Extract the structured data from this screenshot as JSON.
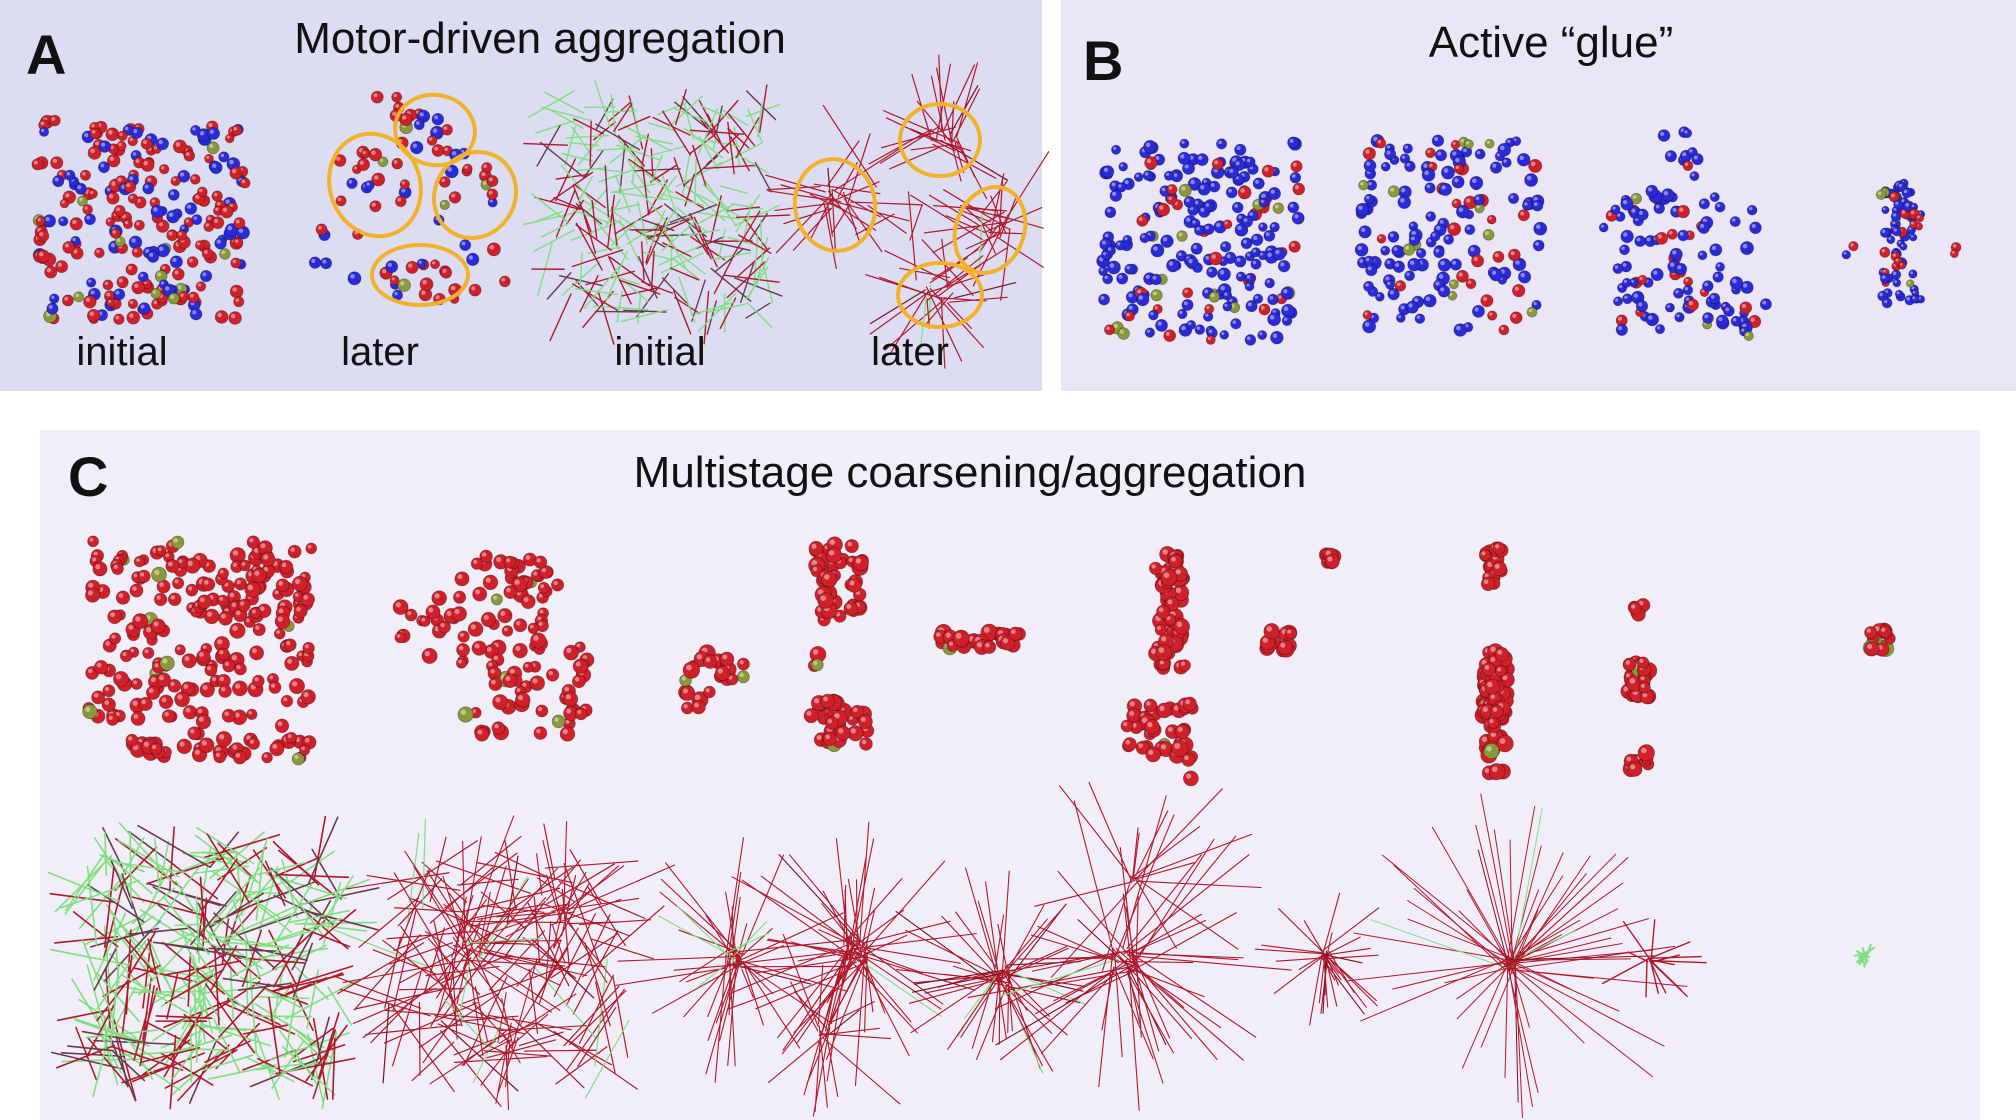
{
  "panel_a": {
    "letter": "A",
    "title": "Motor-driven aggregation",
    "captions": [
      "initial",
      "later",
      "initial",
      "later"
    ]
  },
  "panel_b": {
    "letter": "B",
    "title": "Active “glue”"
  },
  "panel_c": {
    "letter": "C",
    "title": "Multistage coarsening/aggregation"
  },
  "colors": {
    "motor_red": "#d0202a",
    "glue_blue": "#2a2ad8",
    "marker_olive": "#8a9a3a",
    "filament_red": "#b0182a",
    "filament_green": "#7ee07e",
    "ring_orange": "#f2b12a",
    "panel_a_bg": "#dcdcf2",
    "panel_b_bg": "#ebe6f6",
    "panel_c_bg": "#f2eef9"
  }
}
